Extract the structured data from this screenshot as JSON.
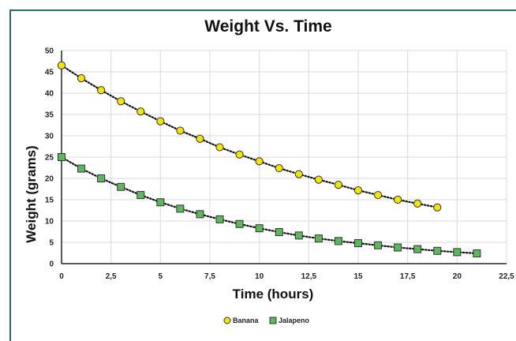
{
  "chart_data": {
    "type": "scatter",
    "title": "Weight Vs. Time",
    "xlabel": "Time  (hours)",
    "ylabel": "Weight  (grams)",
    "xlim": [
      0,
      22.5
    ],
    "ylim": [
      0,
      50
    ],
    "x_ticks": [
      "0",
      "2,5",
      "5",
      "7,5",
      "10",
      "12,5",
      "15",
      "17,5",
      "20",
      "22,5"
    ],
    "y_ticks": [
      "0",
      "5",
      "10",
      "15",
      "20",
      "25",
      "30",
      "35",
      "40",
      "45",
      "50"
    ],
    "grid": true,
    "legend_position": "bottom",
    "trendline": "dotted",
    "series": [
      {
        "name": "Banana",
        "marker": "circle",
        "color": "#f2e600",
        "x": [
          0,
          1,
          2,
          3,
          4,
          5,
          6,
          7,
          8,
          9,
          10,
          11,
          12,
          13,
          14,
          15,
          16,
          17,
          18,
          19
        ],
        "y": [
          46.5,
          43.5,
          40.7,
          38.1,
          35.7,
          33.4,
          31.2,
          29.3,
          27.3,
          25.6,
          24.0,
          22.4,
          21.0,
          19.7,
          18.5,
          17.2,
          16.1,
          15.0,
          14.1,
          13.2
        ]
      },
      {
        "name": "Jalapeno",
        "marker": "square",
        "color": "#5cb85c",
        "x": [
          0,
          1,
          2,
          3,
          4,
          5,
          6,
          7,
          8,
          9,
          10,
          11,
          12,
          13,
          14,
          15,
          16,
          17,
          18,
          19,
          20,
          21
        ],
        "y": [
          25.0,
          22.3,
          20.0,
          18.0,
          16.1,
          14.4,
          12.9,
          11.6,
          10.4,
          9.3,
          8.3,
          7.4,
          6.6,
          5.9,
          5.3,
          4.8,
          4.3,
          3.8,
          3.4,
          3.0,
          2.7,
          2.4
        ]
      }
    ]
  }
}
